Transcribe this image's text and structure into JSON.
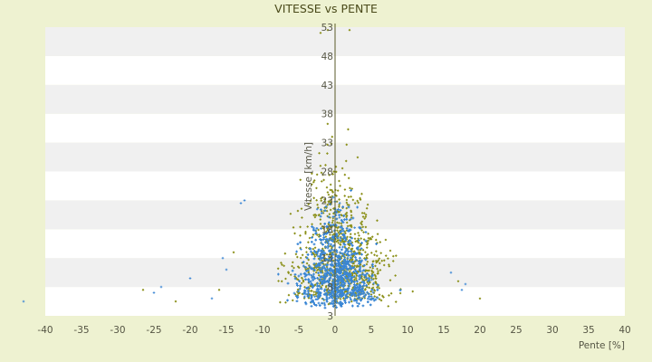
{
  "chart_data": {
    "type": "scatter",
    "title": "VITESSE vs PENTE",
    "xlabel": "Pente [%]",
    "ylabel": "Vitesse [km/h]",
    "xlim": [
      -40,
      40
    ],
    "ylim": [
      3,
      53
    ],
    "xticks": [
      -40,
      -35,
      -30,
      -25,
      -20,
      -15,
      -10,
      -5,
      0,
      5,
      10,
      15,
      20,
      25,
      30,
      35,
      40
    ],
    "yticks": [
      3,
      8,
      13,
      18,
      23,
      28,
      33,
      38,
      43,
      48,
      53
    ],
    "grid": "alternating horizontal bands",
    "legend": "none",
    "series": [
      {
        "color": "#3a86d4",
        "marker": "plus"
      },
      {
        "color": "#8a8f17",
        "marker": "diamond"
      }
    ],
    "notable_points": [
      {
        "x": -43,
        "y": 5.5
      },
      {
        "x": -26.5,
        "y": 7.5
      },
      {
        "x": -25,
        "y": 7
      },
      {
        "x": -24,
        "y": 8
      },
      {
        "x": -22,
        "y": 5.5
      },
      {
        "x": -20,
        "y": 9.5
      },
      {
        "x": -17,
        "y": 6
      },
      {
        "x": -16,
        "y": 7.5
      },
      {
        "x": -15.5,
        "y": 13
      },
      {
        "x": -15,
        "y": 11
      },
      {
        "x": -14,
        "y": 14
      },
      {
        "x": -13,
        "y": 22.5
      },
      {
        "x": -12.5,
        "y": 23
      },
      {
        "x": -2,
        "y": 52
      },
      {
        "x": -1,
        "y": 52.5
      },
      {
        "x": 0,
        "y": 54
      },
      {
        "x": 0.5,
        "y": 53.5
      },
      {
        "x": 2,
        "y": 52.5
      },
      {
        "x": 16,
        "y": 10.5
      },
      {
        "x": 17,
        "y": 9
      },
      {
        "x": 17.5,
        "y": 7.5
      },
      {
        "x": 18,
        "y": 8.5
      },
      {
        "x": 20,
        "y": 6
      }
    ]
  },
  "colors": {
    "background": "#eef2d1",
    "band_white": "#ffffff",
    "band_grey": "#f0f0f0",
    "axis": "#5a5a28"
  }
}
